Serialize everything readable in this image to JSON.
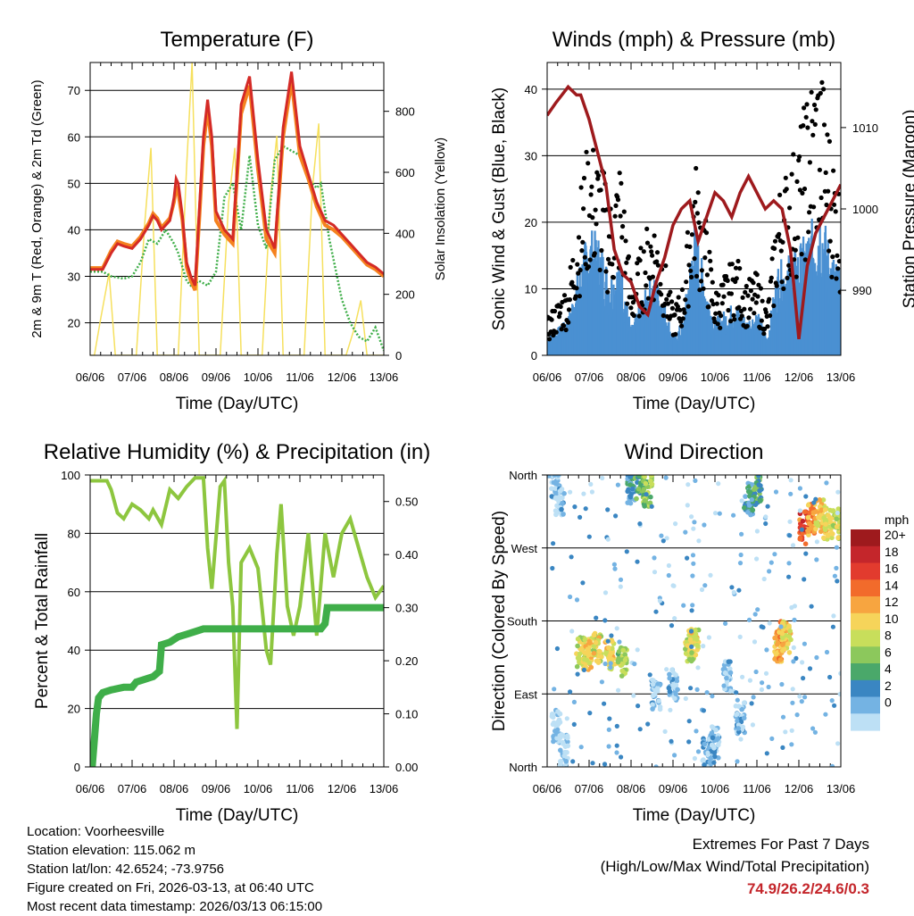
{
  "location": "Location: Voorheesville",
  "elevation": "Station elevation: 115.062 m",
  "latlon": "Station lat/lon: 42.6524; -73.9756",
  "created": "Figure created on Fri, 2026-03-13, at 06:40 UTC",
  "recent": "Most recent data timestamp: 2026/03/13 06:15:00",
  "extremes": {
    "title": "Extremes For Past 7 Days",
    "subtitle": "(High/Low/Max Wind/Total Precipitation)",
    "values": "74.9/26.2/24.6/0.3"
  },
  "colors": {
    "t2m": "#d42a26",
    "t9m": "#f5821f",
    "td": "#3fae49",
    "solar": "#f6e05e",
    "gust": "#000000",
    "wind": "#4a90d2",
    "pressure": "#9e1a1d",
    "rh": "#8dc63f",
    "precip": "#3fae49"
  },
  "chart_data": [
    {
      "type": "line",
      "title": "Temperature (F)",
      "xlabel": "Time (Day/UTC)",
      "ylabel": "2m & 9m T (Red, Orange) & 2m Td (Green)",
      "ylabel_right": "Solar Insolation (Yellow)",
      "x_ticks": [
        "06/06",
        "07/06",
        "08/06",
        "09/06",
        "10/06",
        "11/06",
        "12/06",
        "13/06"
      ],
      "ylim": [
        13,
        76
      ],
      "y_ticks": [
        20,
        30,
        40,
        50,
        60,
        70
      ],
      "ylim_right": [
        0,
        960
      ],
      "y_ticks_right": [
        0,
        200,
        400,
        600,
        800
      ],
      "series": [
        {
          "name": "2m T",
          "color_key": "t2m",
          "x": [
            0,
            0.3,
            0.5,
            0.65,
            0.8,
            1.0,
            1.2,
            1.4,
            1.5,
            1.6,
            1.7,
            1.8,
            1.9,
            2.0,
            2.05,
            2.1,
            2.2,
            2.3,
            2.4,
            2.5,
            2.6,
            2.7,
            2.8,
            2.9,
            3.0,
            3.2,
            3.4,
            3.6,
            3.8,
            4.0,
            4.2,
            4.4,
            4.6,
            4.8,
            5.0,
            5.2,
            5.4,
            5.6,
            5.8,
            6.0,
            6.2,
            6.4,
            6.6,
            6.8,
            7.0
          ],
          "y": [
            31.5,
            31.5,
            35,
            37,
            36.5,
            36,
            38,
            41,
            43,
            42,
            40,
            41,
            42,
            47,
            51,
            50,
            43,
            33,
            30,
            28,
            44,
            60,
            68,
            60,
            44,
            40,
            38,
            67,
            73,
            55,
            40,
            36,
            62,
            74,
            58,
            52,
            46,
            42,
            41,
            39,
            37,
            35,
            33,
            32,
            30.5
          ]
        },
        {
          "name": "9m T",
          "color_key": "t9m",
          "x": [
            0,
            0.3,
            0.5,
            0.65,
            0.8,
            1.0,
            1.2,
            1.4,
            1.5,
            1.6,
            1.7,
            1.8,
            1.9,
            2.0,
            2.05,
            2.1,
            2.2,
            2.3,
            2.4,
            2.5,
            2.6,
            2.7,
            2.8,
            2.9,
            3.0,
            3.2,
            3.4,
            3.6,
            3.8,
            4.0,
            4.2,
            4.4,
            4.6,
            4.8,
            5.0,
            5.2,
            5.4,
            5.6,
            5.8,
            6.0,
            6.2,
            6.4,
            6.6,
            6.8,
            7.0
          ],
          "y": [
            31.8,
            31.8,
            35.5,
            37.5,
            37,
            36.5,
            38.5,
            41.5,
            43.5,
            42.5,
            40.5,
            41.5,
            42.5,
            46,
            49,
            48,
            42,
            32,
            29,
            27,
            42,
            58,
            66,
            58,
            42,
            39,
            37,
            65,
            71,
            53,
            38,
            35,
            60,
            72,
            56,
            51,
            45,
            41,
            40,
            38.5,
            36.5,
            34.5,
            32.5,
            31.5,
            30
          ]
        },
        {
          "name": "2m Td",
          "color_key": "td",
          "x": [
            0,
            0.3,
            0.5,
            0.8,
            1.0,
            1.2,
            1.4,
            1.6,
            1.8,
            2.0,
            2.1,
            2.3,
            2.4,
            2.6,
            2.8,
            3.0,
            3.2,
            3.4,
            3.6,
            3.8,
            4.0,
            4.2,
            4.4,
            4.6,
            4.8,
            5.0,
            5.2,
            5.4,
            5.5,
            5.7,
            6.0,
            6.2,
            6.4,
            6.6,
            6.8,
            7.0
          ],
          "y": [
            31,
            31,
            30,
            29.5,
            30,
            33,
            38,
            37,
            40,
            37,
            35,
            29,
            28,
            29,
            28,
            31,
            47,
            50,
            40,
            56,
            41,
            36,
            55,
            58,
            57,
            56,
            51,
            49,
            50,
            38,
            25,
            20,
            17,
            16,
            19,
            14
          ]
        },
        {
          "name": "Solar Insolation",
          "color_key": "solar",
          "axis": "right",
          "x": [
            0,
            0.1,
            0.25,
            0.45,
            0.6,
            0.9,
            1.1,
            1.3,
            1.45,
            1.6,
            1.9,
            2.1,
            2.3,
            2.43,
            2.6,
            2.9,
            3.1,
            3.3,
            3.45,
            3.6,
            3.9,
            4.1,
            4.3,
            4.45,
            4.6,
            4.9,
            5.1,
            5.3,
            5.45,
            5.6,
            5.9,
            6.1,
            6.3,
            6.45,
            6.6,
            6.9,
            7.0
          ],
          "y": [
            0,
            0,
            120,
            270,
            0,
            0,
            0,
            430,
            680,
            0,
            0,
            0,
            620,
            960,
            0,
            0,
            0,
            500,
            680,
            0,
            0,
            0,
            520,
            720,
            0,
            0,
            0,
            550,
            760,
            0,
            0,
            0,
            90,
            180,
            0,
            0,
            0
          ]
        }
      ]
    },
    {
      "type": "scatter",
      "title": "Winds (mph) & Pressure (mb)",
      "xlabel": "Time (Day/UTC)",
      "ylabel": "Sonic Wind & Gust (Blue, Black)",
      "ylabel_right": "Station Pressure (Maroon)",
      "x_ticks": [
        "06/06",
        "07/06",
        "08/06",
        "09/06",
        "10/06",
        "11/06",
        "12/06",
        "13/06"
      ],
      "ylim": [
        0,
        44
      ],
      "y_ticks": [
        0,
        10,
        20,
        30,
        40
      ],
      "ylim_right": [
        982,
        1018
      ],
      "y_ticks_right": [
        990,
        1000,
        1010
      ],
      "series": [
        {
          "name": "Wind",
          "color_key": "wind",
          "x": [
            0,
            0.25,
            0.5,
            0.75,
            1.0,
            1.25,
            1.5,
            1.75,
            2.0,
            2.25,
            2.5,
            2.75,
            3.0,
            3.25,
            3.5,
            3.75,
            4.0,
            4.25,
            4.5,
            4.75,
            5.0,
            5.25,
            5.5,
            5.75,
            6.0,
            6.25,
            6.5,
            6.75,
            7.0
          ],
          "y": [
            2,
            3,
            4,
            10,
            14,
            13,
            9,
            11,
            3,
            6,
            9,
            7,
            2,
            4,
            15,
            9,
            4,
            5,
            6,
            4,
            5,
            2,
            10,
            11,
            12,
            14,
            17,
            12,
            9
          ]
        },
        {
          "name": "Gust",
          "color_key": "gust",
          "x": [
            0,
            0.25,
            0.5,
            0.75,
            1.0,
            1.25,
            1.5,
            1.75,
            2.0,
            2.25,
            2.5,
            2.75,
            3.0,
            3.25,
            3.5,
            3.75,
            4.0,
            4.25,
            4.5,
            4.75,
            5.0,
            5.25,
            5.5,
            5.75,
            6.0,
            6.25,
            6.5,
            6.75,
            7.0
          ],
          "y": [
            4,
            6,
            8,
            17,
            24,
            22,
            17,
            22,
            8,
            12,
            16,
            12,
            5,
            8,
            22,
            16,
            7,
            9,
            11,
            8,
            9,
            5,
            18,
            21,
            24,
            30,
            33,
            24,
            18
          ]
        },
        {
          "name": "Station Pressure",
          "color_key": "pressure",
          "axis": "right",
          "x": [
            0,
            0.2,
            0.5,
            0.7,
            0.8,
            1.0,
            1.2,
            1.4,
            1.6,
            1.8,
            2.0,
            2.2,
            2.4,
            2.6,
            2.8,
            3.0,
            3.2,
            3.4,
            3.6,
            3.8,
            4.0,
            4.2,
            4.4,
            4.6,
            4.8,
            5.0,
            5.2,
            5.4,
            5.6,
            5.8,
            6.0,
            6.2,
            6.4,
            6.6,
            6.8,
            7.0
          ],
          "y": [
            1011.5,
            1013,
            1015,
            1014,
            1014,
            1011,
            1007,
            1003,
            995,
            992,
            991,
            988,
            987,
            991,
            994,
            998,
            1000,
            1001,
            996,
            999,
            1002,
            1001,
            999,
            1002,
            1004,
            1002,
            1000,
            1001,
            1000,
            995,
            984,
            993,
            997,
            999,
            1001,
            1003
          ]
        }
      ]
    },
    {
      "type": "line",
      "title": "Relative Humidity (%) & Precipitation (in)",
      "xlabel": "Time (Day/UTC)",
      "ylabel": "Percent & Total Rainfall",
      "x_ticks": [
        "06/06",
        "07/06",
        "08/06",
        "09/06",
        "10/06",
        "11/06",
        "12/06",
        "13/06"
      ],
      "ylim": [
        0,
        100
      ],
      "y_ticks": [
        0,
        20,
        40,
        60,
        80,
        100
      ],
      "ylim_right": [
        0,
        0.55
      ],
      "y_ticks_right": [
        "0.00",
        "0.10",
        "0.20",
        "0.30",
        "0.40",
        "0.50"
      ],
      "series": [
        {
          "name": "Relative Humidity",
          "color_key": "rh",
          "x": [
            0,
            0.4,
            0.5,
            0.65,
            0.8,
            1.0,
            1.2,
            1.4,
            1.5,
            1.7,
            1.9,
            2.1,
            2.3,
            2.5,
            2.7,
            2.8,
            2.9,
            3.1,
            3.2,
            3.3,
            3.4,
            3.5,
            3.6,
            3.8,
            4.0,
            4.2,
            4.3,
            4.45,
            4.55,
            4.7,
            4.85,
            5.0,
            5.2,
            5.4,
            5.6,
            5.8,
            6.0,
            6.2,
            6.4,
            6.6,
            6.8,
            7.0
          ],
          "y": [
            98,
            98,
            95,
            87,
            85,
            90,
            88,
            85,
            88,
            83,
            95,
            92,
            96,
            99,
            99,
            75,
            61,
            96,
            98,
            70,
            55,
            13,
            70,
            75,
            68,
            40,
            35,
            73,
            90,
            55,
            45,
            55,
            80,
            45,
            80,
            65,
            80,
            85,
            75,
            65,
            58,
            62
          ]
        },
        {
          "name": "Total Precipitation",
          "color_key": "precip",
          "axis": "right",
          "x": [
            0,
            0.05,
            0.1,
            0.15,
            0.2,
            0.3,
            0.5,
            0.8,
            1.0,
            1.1,
            1.3,
            1.5,
            1.65,
            1.7,
            1.9,
            2.0,
            2.1,
            2.3,
            2.5,
            2.7,
            3.0,
            4.0,
            5.0,
            5.5,
            5.6,
            5.65,
            6.0,
            7.0
          ],
          "y": [
            0,
            0,
            0.05,
            0.1,
            0.13,
            0.14,
            0.145,
            0.15,
            0.15,
            0.16,
            0.165,
            0.17,
            0.18,
            0.23,
            0.235,
            0.24,
            0.245,
            0.25,
            0.255,
            0.26,
            0.26,
            0.26,
            0.26,
            0.26,
            0.27,
            0.3,
            0.3,
            0.3
          ]
        }
      ]
    },
    {
      "type": "scatter",
      "title": "Wind Direction",
      "xlabel": "Time (Day/UTC)",
      "ylabel": "Direction (Colored By Speed)",
      "x_ticks": [
        "06/06",
        "07/06",
        "08/06",
        "09/06",
        "10/06",
        "11/06",
        "12/06",
        "13/06"
      ],
      "ylim": [
        0,
        360
      ],
      "y_tick_values": [
        0,
        90,
        180,
        270,
        360
      ],
      "y_tick_labels": [
        "North",
        "East",
        "South",
        "West",
        "North"
      ],
      "colorbar": {
        "unit": "mph",
        "labels": [
          "20+",
          "18",
          "16",
          "14",
          "12",
          "10",
          "8",
          "6",
          "4",
          "2",
          "0"
        ],
        "colors": [
          "#9e1a1d",
          "#c4262b",
          "#e23b2e",
          "#f26b2b",
          "#f7a540",
          "#f6d45a",
          "#c8de5b",
          "#8cc85c",
          "#4aa86a",
          "#3a86c2",
          "#74b3e3",
          "#bde0f5"
        ]
      },
      "series": [
        {
          "name": "Direction clusters",
          "x": [
            0.2,
            0.3,
            0.2,
            0.4,
            0.8,
            1.0,
            1.2,
            1.5,
            1.8,
            2.0,
            2.2,
            2.4,
            2.6,
            3.0,
            3.4,
            3.5,
            3.8,
            4.0,
            4.3,
            4.6,
            4.8,
            5.0,
            5.5,
            5.6,
            5.7,
            6.1,
            6.3,
            6.5,
            6.7,
            6.9
          ],
          "dir": [
            350,
            330,
            50,
            20,
            140,
            140,
            145,
            140,
            130,
            345,
            350,
            340,
            90,
            100,
            150,
            150,
            20,
            30,
            110,
            60,
            330,
            340,
            150,
            160,
            160,
            295,
            305,
            310,
            300,
            300
          ],
          "speed": [
            2,
            2,
            1,
            1,
            11,
            13,
            12,
            12,
            10,
            5,
            7,
            9,
            2,
            2,
            11,
            12,
            3,
            3,
            2,
            3,
            5,
            7,
            14,
            16,
            13,
            18,
            15,
            13,
            12,
            11
          ]
        }
      ]
    }
  ]
}
